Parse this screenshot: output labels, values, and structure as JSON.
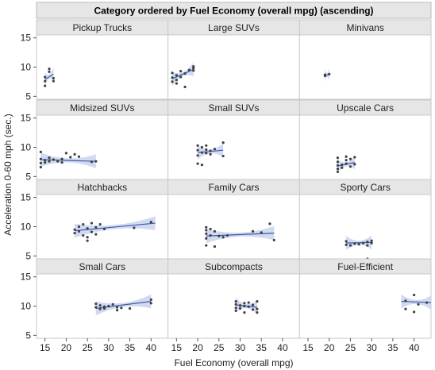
{
  "chart_data": {
    "type": "scatter",
    "title": "Category ordered by Fuel Economy (overall mpg) (ascending)",
    "xlabel": "Fuel Economy (overall mpg)",
    "ylabel": "Acceleration 0-60 mph (sec.)",
    "xlim": [
      13,
      44
    ],
    "ylim": [
      4.5,
      15.5
    ],
    "xticks": [
      15,
      20,
      25,
      30,
      35,
      40
    ],
    "yticks": [
      5,
      10,
      15
    ],
    "grid": false,
    "colors": {
      "point": "#404040",
      "fit": "#3c5aa8",
      "band": "#c9d3ee",
      "header": "#e6e6e6",
      "panel_border": "#c8c8c8"
    },
    "panels": [
      {
        "name": "Pickup Trucks",
        "points": [
          [
            15,
            6.8
          ],
          [
            15,
            7.6
          ],
          [
            15,
            8.3
          ],
          [
            16,
            9.2
          ],
          [
            16,
            9.7
          ],
          [
            17,
            8.1
          ],
          [
            17,
            7.6
          ]
        ],
        "fit": [
          [
            15,
            7.9
          ],
          [
            17,
            8.8
          ]
        ]
      },
      {
        "name": "Large SUVs",
        "points": [
          [
            14,
            9.0
          ],
          [
            14,
            8.2
          ],
          [
            14,
            7.5
          ],
          [
            15,
            7.8
          ],
          [
            15,
            8.6
          ],
          [
            15,
            7.2
          ],
          [
            16,
            8.3
          ],
          [
            16,
            9.3
          ],
          [
            17,
            8.9
          ],
          [
            17,
            6.6
          ],
          [
            18,
            9.5
          ],
          [
            19,
            9.8
          ],
          [
            19,
            10.1
          ],
          [
            19,
            9.4
          ]
        ],
        "fit": [
          [
            14,
            8.0
          ],
          [
            19,
            9.6
          ]
        ]
      },
      {
        "name": "Minivans",
        "points": [
          [
            19,
            8.7
          ],
          [
            19,
            8.5
          ],
          [
            20,
            8.8
          ]
        ],
        "fit": [
          [
            19,
            8.6
          ],
          [
            20,
            8.7
          ]
        ]
      },
      {
        "name": "Midsized SUVs",
        "points": [
          [
            14,
            9.2
          ],
          [
            14,
            8.0
          ],
          [
            14,
            7.3
          ],
          [
            14,
            6.6
          ],
          [
            15,
            7.8
          ],
          [
            15,
            7.4
          ],
          [
            16,
            8.2
          ],
          [
            16,
            7.6
          ],
          [
            17,
            7.9
          ],
          [
            18,
            7.6
          ],
          [
            19,
            8.0
          ],
          [
            19,
            7.4
          ],
          [
            20,
            9.0
          ],
          [
            21,
            8.3
          ],
          [
            22,
            8.8
          ],
          [
            23,
            8.4
          ],
          [
            26,
            7.5
          ],
          [
            27,
            7.6
          ]
        ],
        "fit": [
          [
            14,
            7.9
          ],
          [
            27,
            7.6
          ]
        ]
      },
      {
        "name": "Small SUVs",
        "points": [
          [
            20,
            10.3
          ],
          [
            20,
            9.5
          ],
          [
            20,
            8.6
          ],
          [
            20,
            7.2
          ],
          [
            21,
            10.0
          ],
          [
            21,
            9.1
          ],
          [
            21,
            7.0
          ],
          [
            22,
            9.6
          ],
          [
            22,
            10.3
          ],
          [
            22,
            9.0
          ],
          [
            23,
            9.4
          ],
          [
            23,
            8.8
          ],
          [
            24,
            9.7
          ],
          [
            26,
            10.8
          ],
          [
            26,
            8.5
          ]
        ],
        "fit": [
          [
            20,
            9.1
          ],
          [
            26,
            9.5
          ]
        ]
      },
      {
        "name": "Upscale Cars",
        "points": [
          [
            22,
            8.2
          ],
          [
            22,
            7.5
          ],
          [
            22,
            6.9
          ],
          [
            22,
            6.3
          ],
          [
            22,
            5.8
          ],
          [
            23,
            7.0
          ],
          [
            23,
            6.5
          ],
          [
            24,
            8.4
          ],
          [
            24,
            7.8
          ],
          [
            24,
            7.2
          ],
          [
            25,
            8.0
          ],
          [
            25,
            6.7
          ],
          [
            26,
            8.3
          ],
          [
            26,
            7.1
          ]
        ],
        "fit": [
          [
            22,
            6.8
          ],
          [
            26,
            7.4
          ]
        ]
      },
      {
        "name": "Hatchbacks",
        "points": [
          [
            22,
            9.5
          ],
          [
            22,
            8.9
          ],
          [
            23,
            10.0
          ],
          [
            23,
            9.2
          ],
          [
            24,
            10.4
          ],
          [
            24,
            8.5
          ],
          [
            25,
            9.7
          ],
          [
            25,
            7.6
          ],
          [
            25,
            8.2
          ],
          [
            26,
            10.6
          ],
          [
            26,
            9.1
          ],
          [
            27,
            9.9
          ],
          [
            27,
            8.7
          ],
          [
            28,
            10.4
          ],
          [
            29,
            9.6
          ],
          [
            36,
            9.8
          ],
          [
            40,
            10.8
          ]
        ],
        "fit": [
          [
            22,
            9.3
          ],
          [
            41,
            10.6
          ]
        ]
      },
      {
        "name": "Family Cars",
        "points": [
          [
            22,
            9.9
          ],
          [
            22,
            9.4
          ],
          [
            22,
            8.8
          ],
          [
            22,
            8.0
          ],
          [
            22,
            6.8
          ],
          [
            23,
            9.6
          ],
          [
            23,
            8.5
          ],
          [
            24,
            9.2
          ],
          [
            24,
            6.6
          ],
          [
            25,
            8.4
          ],
          [
            26,
            8.2
          ],
          [
            27,
            8.5
          ],
          [
            33,
            9.2
          ],
          [
            35,
            9.0
          ],
          [
            37,
            10.5
          ],
          [
            38,
            7.7
          ]
        ],
        "fit": [
          [
            22,
            8.4
          ],
          [
            38,
            8.9
          ]
        ]
      },
      {
        "name": "Sporty Cars",
        "points": [
          [
            24,
            7.5
          ],
          [
            24,
            6.9
          ],
          [
            25,
            6.8
          ],
          [
            26,
            7.1
          ],
          [
            27,
            7.0
          ],
          [
            28,
            7.2
          ],
          [
            29,
            7.4
          ],
          [
            29,
            6.8
          ],
          [
            30,
            7.6
          ],
          [
            30,
            7.2
          ],
          [
            29,
            4.5
          ]
        ],
        "fit": [
          [
            24,
            7.2
          ],
          [
            30,
            7.3
          ]
        ]
      },
      {
        "name": "Small Cars",
        "points": [
          [
            27,
            10.4
          ],
          [
            27,
            9.8
          ],
          [
            28,
            10.1
          ],
          [
            28,
            9.5
          ],
          [
            29,
            9.9
          ],
          [
            29,
            9.6
          ],
          [
            30,
            10.0
          ],
          [
            31,
            10.3
          ],
          [
            32,
            9.8
          ],
          [
            32,
            9.3
          ],
          [
            33,
            9.7
          ],
          [
            35,
            9.6
          ],
          [
            40,
            11.1
          ],
          [
            40,
            10.5
          ]
        ],
        "fit": [
          [
            27,
            9.6
          ],
          [
            40,
            10.8
          ]
        ]
      },
      {
        "name": "Subcompacts",
        "points": [
          [
            29,
            10.8
          ],
          [
            29,
            10.3
          ],
          [
            29,
            9.7
          ],
          [
            29,
            9.2
          ],
          [
            30,
            10.1
          ],
          [
            30,
            9.6
          ],
          [
            31,
            10.5
          ],
          [
            31,
            10.0
          ],
          [
            31,
            8.9
          ],
          [
            32,
            10.6
          ],
          [
            32,
            9.9
          ],
          [
            33,
            10.2
          ],
          [
            33,
            9.4
          ],
          [
            34,
            10.8
          ],
          [
            34,
            9.5
          ],
          [
            34,
            8.9
          ]
        ],
        "fit": [
          [
            29,
            10.2
          ],
          [
            34,
            9.8
          ]
        ]
      },
      {
        "name": "Fuel-Efficient",
        "points": [
          [
            38,
            10.9
          ],
          [
            38,
            9.5
          ],
          [
            40,
            11.9
          ],
          [
            40,
            9.0
          ],
          [
            41,
            10.3
          ],
          [
            43,
            10.6
          ]
        ],
        "fit": [
          [
            37,
            10.8
          ],
          [
            44,
            10.6
          ]
        ]
      }
    ]
  }
}
